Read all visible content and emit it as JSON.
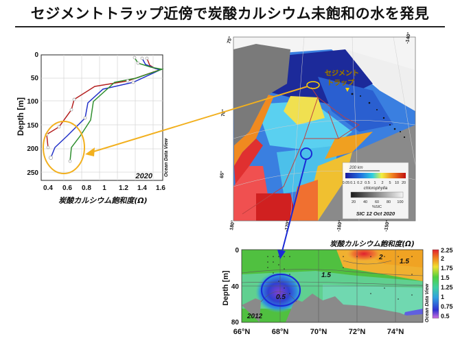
{
  "title": "セジメントトラップ近傍で炭酸カルシウム未飽和の水を発見",
  "profile": {
    "ylabel": "Depth [m]",
    "xlabel": "炭酸カルシウム飽和度(Ω)",
    "year": "2020",
    "watermark": "Ocean Data View",
    "yticks": [
      "0",
      "50",
      "100",
      "150",
      "200",
      "250"
    ],
    "xticks": [
      "0.4",
      "0.6",
      "0.8",
      "1",
      "1.2",
      "1.4",
      "1.6"
    ],
    "highlight_color": "#f4b400"
  },
  "map": {
    "trap_label": "セジメント\nトラップ",
    "trap_label_line1": "セジメント",
    "trap_label_line2": "トラップ",
    "scale_label": "200 km",
    "chl_ticks": [
      "0.05",
      "0.1",
      "0.2",
      "0.5",
      "1",
      "2",
      "5",
      "10",
      "20"
    ],
    "chl_label": "chlorophylla",
    "sic_ticks": [
      "20",
      "40",
      "60",
      "80",
      "100"
    ],
    "sic_label": "%SIC",
    "sic_date": "SIC 12 Oct 2020",
    "lon_labels": [
      "180°",
      "-170°",
      "-160°",
      "-150°",
      "-140°"
    ],
    "lat_labels": [
      "75°",
      "70°",
      "65°"
    ]
  },
  "section": {
    "title": "炭酸カルシウム飽和度(Ω)",
    "ylabel": "Depth [m]",
    "yticks": [
      "0",
      "40",
      "80"
    ],
    "xticks": [
      "66°N",
      "68°N",
      "70°N",
      "72°N",
      "74°N"
    ],
    "year": "2012",
    "watermark": "Ocean Data View",
    "contour_labels": [
      "2",
      "1.5",
      "1.5",
      "0.5"
    ],
    "colorbar_ticks": [
      "2.25",
      "2",
      "1.75",
      "1.5",
      "1.25",
      "1",
      "0.75",
      "0.5"
    ]
  },
  "colors": {
    "arrow_yellow": "#f2b01e",
    "arrow_blue": "#1a2ad6",
    "trap_marker": "#ffd400"
  }
}
